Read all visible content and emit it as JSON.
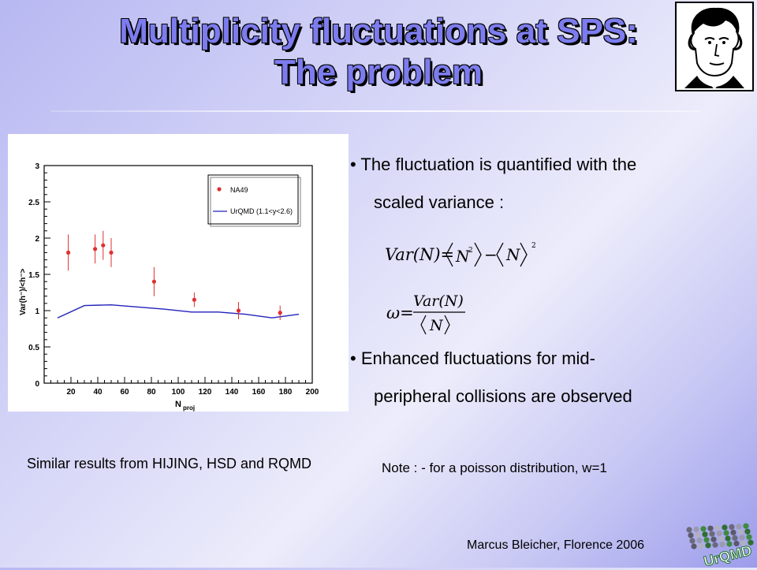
{
  "slide": {
    "title_line1": "Multiplicity fluctuations at SPS:",
    "title_line2": "The problem",
    "bullets": [
      {
        "line1": "• The fluctuation is quantified with the",
        "line2": "scaled variance :"
      },
      {
        "line1": "• Enhanced fluctuations for mid-",
        "line2": "peripheral collisions are observed"
      }
    ],
    "formula1": {
      "lhs": "Var(N)=",
      "n2": "N",
      "exp": "2",
      "minus": "−",
      "n": "N",
      "outer_exp": "2"
    },
    "formula2": {
      "omega": "ω=",
      "num": "Var(N)",
      "den": "N"
    },
    "side_note": "Similar results from HIJING, HSD and RQMD",
    "note": "Note :  - for a poisson distribution, w=1",
    "footer": "Marcus Bleicher, Florence 2006",
    "logo_text": "UrQMD",
    "colors": {
      "title": "#7c7cee",
      "data": "#e03030",
      "model": "#2222bb"
    }
  },
  "chart_data": {
    "type": "scatter",
    "xlabel": "N",
    "xlabel_sub": "proj",
    "ylabel": "Var(h⁻)/<h⁻>",
    "xlim": [
      0,
      200
    ],
    "ylim": [
      0,
      3
    ],
    "xticks": [
      "20",
      "40",
      "60",
      "80",
      "100",
      "120",
      "140",
      "160",
      "180",
      "200"
    ],
    "yticks": [
      "0",
      "0.5",
      "1",
      "1.5",
      "2",
      "2.5",
      "3"
    ],
    "legend": {
      "position": "top-right",
      "entries": [
        "NA49",
        "UrQMD (1.1<y<2.6)"
      ]
    },
    "series": [
      {
        "name": "NA49",
        "x": [
          18,
          38,
          44,
          50,
          82,
          112,
          145,
          176
        ],
        "y": [
          1.8,
          1.85,
          1.9,
          1.8,
          1.4,
          1.15,
          1.0,
          0.97
        ],
        "err": [
          0.25,
          0.2,
          0.2,
          0.2,
          0.2,
          0.1,
          0.12,
          0.1
        ]
      },
      {
        "name": "UrQMD (1.1<y<2.6)",
        "x": [
          10,
          30,
          50,
          70,
          90,
          110,
          130,
          150,
          170,
          190
        ],
        "y": [
          0.9,
          1.07,
          1.08,
          1.05,
          1.02,
          0.98,
          0.98,
          0.95,
          0.9,
          0.95
        ]
      }
    ]
  }
}
